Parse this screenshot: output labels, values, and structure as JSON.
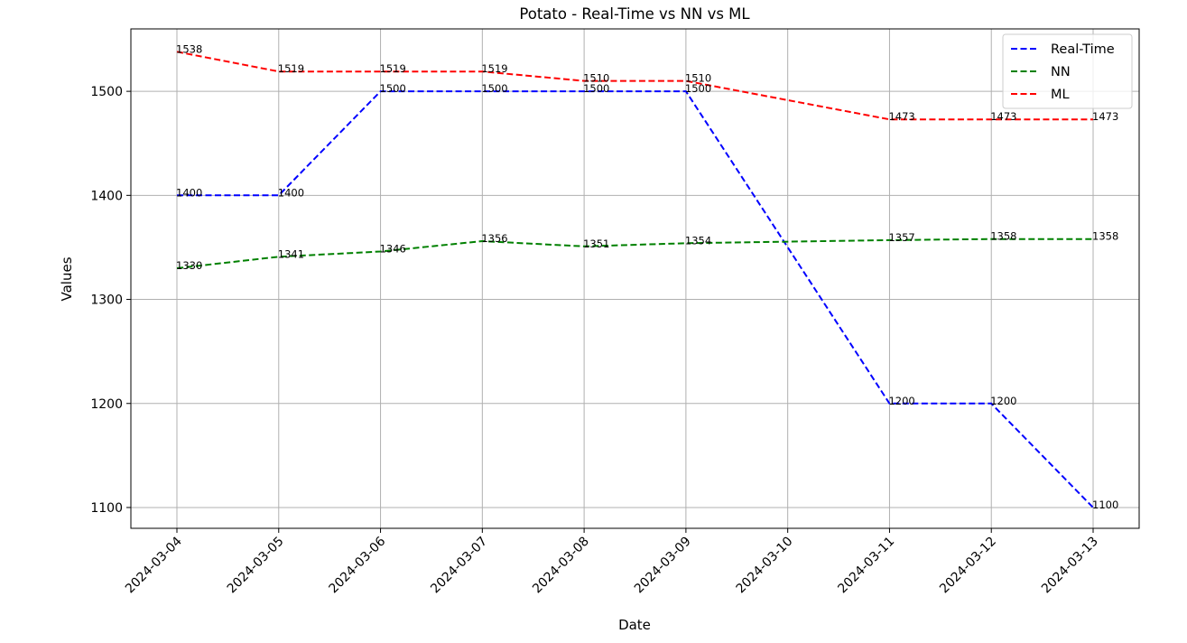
{
  "chart_data": {
    "type": "line",
    "title": "Potato - Real-Time vs NN vs ML",
    "xlabel": "Date",
    "ylabel": "Values",
    "x": [
      "2024-03-04",
      "2024-03-05",
      "2024-03-06",
      "2024-03-07",
      "2024-03-08",
      "2024-03-09",
      "2024-03-10",
      "2024-03-11",
      "2024-03-12",
      "2024-03-13"
    ],
    "ylim": [
      1080,
      1560
    ],
    "yticks": [
      1100,
      1200,
      1300,
      1400,
      1500
    ],
    "grid": true,
    "legend_position": "top-right",
    "series": [
      {
        "name": "Real-Time",
        "color": "#0000ff",
        "values": [
          1400,
          1400,
          1500,
          1500,
          1500,
          1500,
          1350,
          1200,
          1200,
          1100
        ],
        "labels": [
          "1400",
          "1400",
          "1500",
          "1500",
          "1500",
          "1500",
          "",
          "1200",
          "1200",
          "1100"
        ]
      },
      {
        "name": "NN",
        "color": "#008000",
        "values": [
          1330,
          1341,
          1346,
          1356,
          1351,
          1354,
          1355.5,
          1357,
          1358,
          1358
        ],
        "labels": [
          "1330",
          "1341",
          "1346",
          "1356",
          "1351",
          "1354",
          "",
          "1357",
          "1358",
          "1358"
        ]
      },
      {
        "name": "ML",
        "color": "#ff0000",
        "values": [
          1538,
          1519,
          1519,
          1519,
          1510,
          1510,
          1491.5,
          1473,
          1473,
          1473
        ],
        "labels": [
          "1538",
          "1519",
          "1519",
          "1519",
          "1510",
          "1510",
          "",
          "1473",
          "1473",
          "1473"
        ]
      }
    ]
  }
}
